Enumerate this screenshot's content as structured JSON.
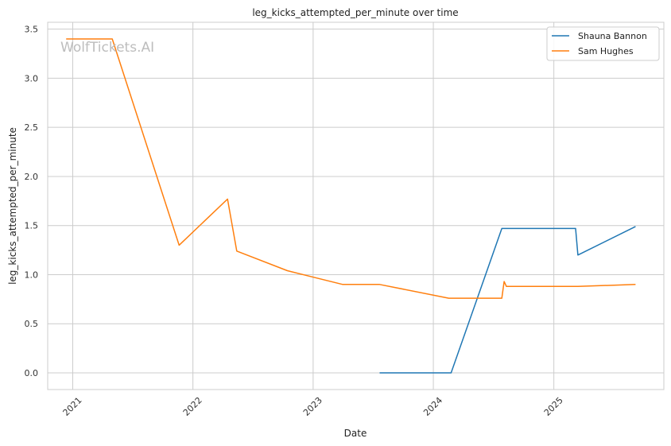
{
  "chart_data": {
    "type": "line",
    "title": "leg_kicks_attempted_per_minute over time",
    "xlabel": "Date",
    "ylabel": "leg_kicks_attempted_per_minute",
    "watermark": "WolfTickets.AI",
    "x_ticks": [
      "2021",
      "2022",
      "2023",
      "2024",
      "2025"
    ],
    "y_ticks": [
      "0.0",
      "0.5",
      "1.0",
      "1.5",
      "2.0",
      "2.5",
      "3.0",
      "3.5"
    ],
    "xlim": [
      "2020-10-17",
      "2025-12-01"
    ],
    "ylim": [
      -0.17,
      3.57
    ],
    "grid": true,
    "legend_position": "top-right",
    "series": [
      {
        "name": "Shauna Bannon",
        "color": "#1f77b4",
        "points": [
          [
            "2023-07-22",
            0.0
          ],
          [
            "2024-02-24",
            0.0
          ],
          [
            "2024-07-27",
            1.47
          ],
          [
            "2025-03-08",
            1.47
          ],
          [
            "2025-03-15",
            1.2
          ],
          [
            "2025-09-06",
            1.49
          ]
        ]
      },
      {
        "name": "Sam Hughes",
        "color": "#ff7f0e",
        "points": [
          [
            "2020-12-12",
            3.4
          ],
          [
            "2021-05-01",
            3.4
          ],
          [
            "2021-11-20",
            1.3
          ],
          [
            "2022-04-16",
            1.77
          ],
          [
            "2022-05-14",
            1.24
          ],
          [
            "2022-10-15",
            1.04
          ],
          [
            "2023-04-01",
            0.9
          ],
          [
            "2023-07-22",
            0.9
          ],
          [
            "2024-02-17",
            0.76
          ],
          [
            "2024-07-27",
            0.76
          ],
          [
            "2024-08-03",
            0.93
          ],
          [
            "2024-08-10",
            0.88
          ],
          [
            "2025-03-15",
            0.88
          ],
          [
            "2025-09-06",
            0.9
          ]
        ]
      }
    ]
  }
}
